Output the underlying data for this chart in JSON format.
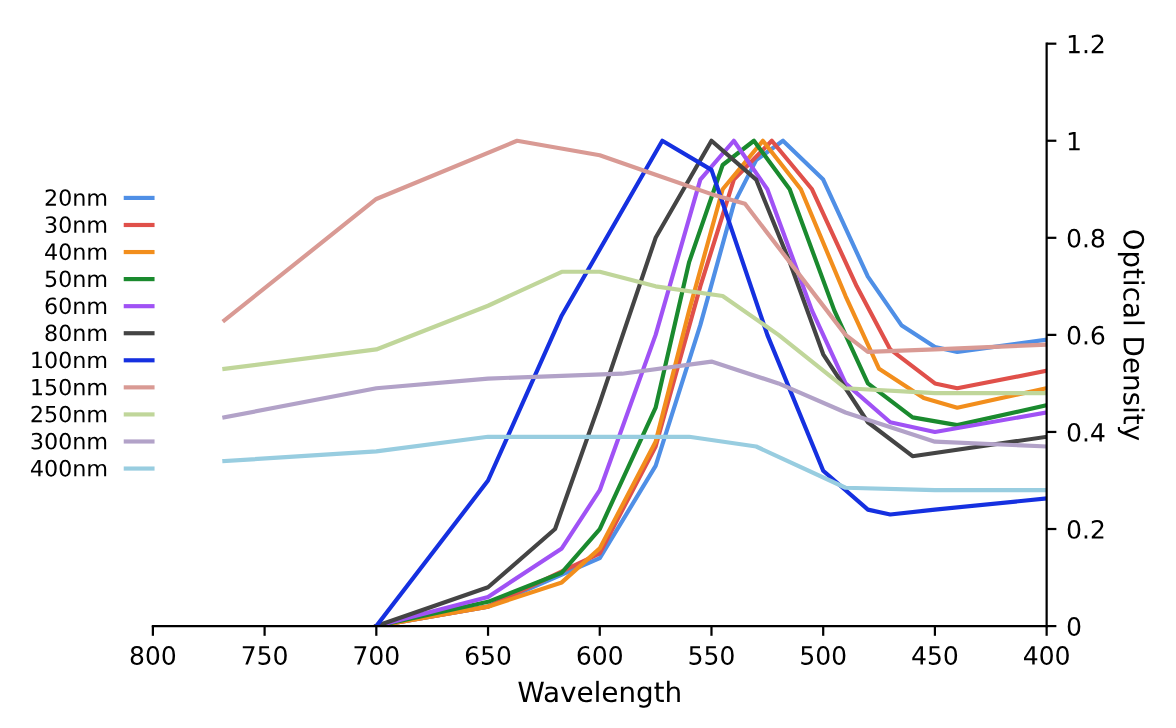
{
  "chart_data": {
    "type": "line",
    "xlabel": "Wavelength",
    "ylabel": "Optical Density",
    "xlim": [
      800,
      400
    ],
    "xticks": [
      800,
      750,
      700,
      650,
      600,
      550,
      500,
      450,
      400
    ],
    "ylim": [
      0,
      1.2
    ],
    "yticks": [
      0,
      0.2,
      0.4,
      0.6,
      0.8,
      1,
      1.2
    ],
    "grid": false,
    "legend": "left",
    "marker": "none",
    "line_style": "solid",
    "series": [
      {
        "name": "20nm",
        "color": "#4f8fe6",
        "x": [
          700,
          650,
          600,
          575,
          555,
          540,
          530,
          518,
          500,
          480,
          465,
          450,
          440,
          400
        ],
        "values": [
          0,
          0.04,
          0.14,
          0.33,
          0.62,
          0.87,
          0.96,
          1.0,
          0.92,
          0.72,
          0.62,
          0.575,
          0.565,
          0.59
        ]
      },
      {
        "name": "30nm",
        "color": "#e0504a",
        "x": [
          700,
          650,
          600,
          575,
          555,
          540,
          523,
          505,
          485,
          470,
          450,
          440,
          400
        ],
        "values": [
          0,
          0.04,
          0.15,
          0.37,
          0.7,
          0.92,
          1.0,
          0.9,
          0.7,
          0.57,
          0.5,
          0.49,
          0.526
        ]
      },
      {
        "name": "40nm",
        "color": "#f28e1c",
        "x": [
          700,
          650,
          617,
          600,
          575,
          560,
          545,
          527,
          510,
          490,
          475,
          455,
          440,
          400
        ],
        "values": [
          0,
          0.04,
          0.09,
          0.16,
          0.38,
          0.65,
          0.9,
          1.0,
          0.9,
          0.68,
          0.53,
          0.47,
          0.45,
          0.49
        ]
      },
      {
        "name": "50nm",
        "color": "#1a8a2e",
        "x": [
          700,
          650,
          617,
          600,
          575,
          560,
          545,
          531,
          515,
          495,
          480,
          460,
          440,
          400
        ],
        "values": [
          0,
          0.05,
          0.11,
          0.2,
          0.45,
          0.75,
          0.95,
          1.0,
          0.9,
          0.65,
          0.5,
          0.43,
          0.414,
          0.455
        ]
      },
      {
        "name": "60nm",
        "color": "#a052f5",
        "x": [
          700,
          650,
          617,
          600,
          575,
          555,
          540,
          525,
          505,
          490,
          470,
          450,
          400
        ],
        "values": [
          0,
          0.06,
          0.16,
          0.28,
          0.6,
          0.92,
          1.0,
          0.9,
          0.65,
          0.5,
          0.42,
          0.4,
          0.44
        ]
      },
      {
        "name": "80nm",
        "color": "#444444",
        "x": [
          700,
          650,
          620,
          600,
          575,
          550,
          530,
          515,
          500,
          480,
          460,
          400
        ],
        "values": [
          0,
          0.08,
          0.2,
          0.46,
          0.8,
          1.0,
          0.92,
          0.75,
          0.56,
          0.42,
          0.35,
          0.39
        ]
      },
      {
        "name": "100nm",
        "color": "#1530e0",
        "x": [
          700,
          650,
          617,
          572,
          550,
          525,
          500,
          480,
          470,
          450,
          400
        ],
        "values": [
          0,
          0.3,
          0.64,
          1.0,
          0.94,
          0.6,
          0.32,
          0.24,
          0.23,
          0.24,
          0.263
        ]
      },
      {
        "name": "150nm",
        "color": "#d99a94",
        "x": [
          768,
          700,
          637,
          600,
          575,
          550,
          535,
          510,
          490,
          480,
          450,
          400
        ],
        "values": [
          0.63,
          0.88,
          1.0,
          0.97,
          0.93,
          0.89,
          0.87,
          0.72,
          0.6,
          0.565,
          0.57,
          0.58
        ]
      },
      {
        "name": "250nm",
        "color": "#c0d69a",
        "x": [
          768,
          700,
          650,
          617,
          600,
          575,
          545,
          520,
          490,
          450,
          400
        ],
        "values": [
          0.53,
          0.57,
          0.66,
          0.73,
          0.73,
          0.7,
          0.68,
          0.6,
          0.49,
          0.48,
          0.48
        ]
      },
      {
        "name": "300nm",
        "color": "#b2a2c8",
        "x": [
          768,
          700,
          650,
          590,
          550,
          520,
          490,
          450,
          400
        ],
        "values": [
          0.43,
          0.49,
          0.51,
          0.52,
          0.545,
          0.5,
          0.44,
          0.38,
          0.37
        ]
      },
      {
        "name": "400nm",
        "color": "#98cde0",
        "x": [
          768,
          700,
          650,
          560,
          530,
          490,
          450,
          400
        ],
        "values": [
          0.34,
          0.36,
          0.39,
          0.39,
          0.37,
          0.285,
          0.28,
          0.28
        ]
      }
    ]
  }
}
